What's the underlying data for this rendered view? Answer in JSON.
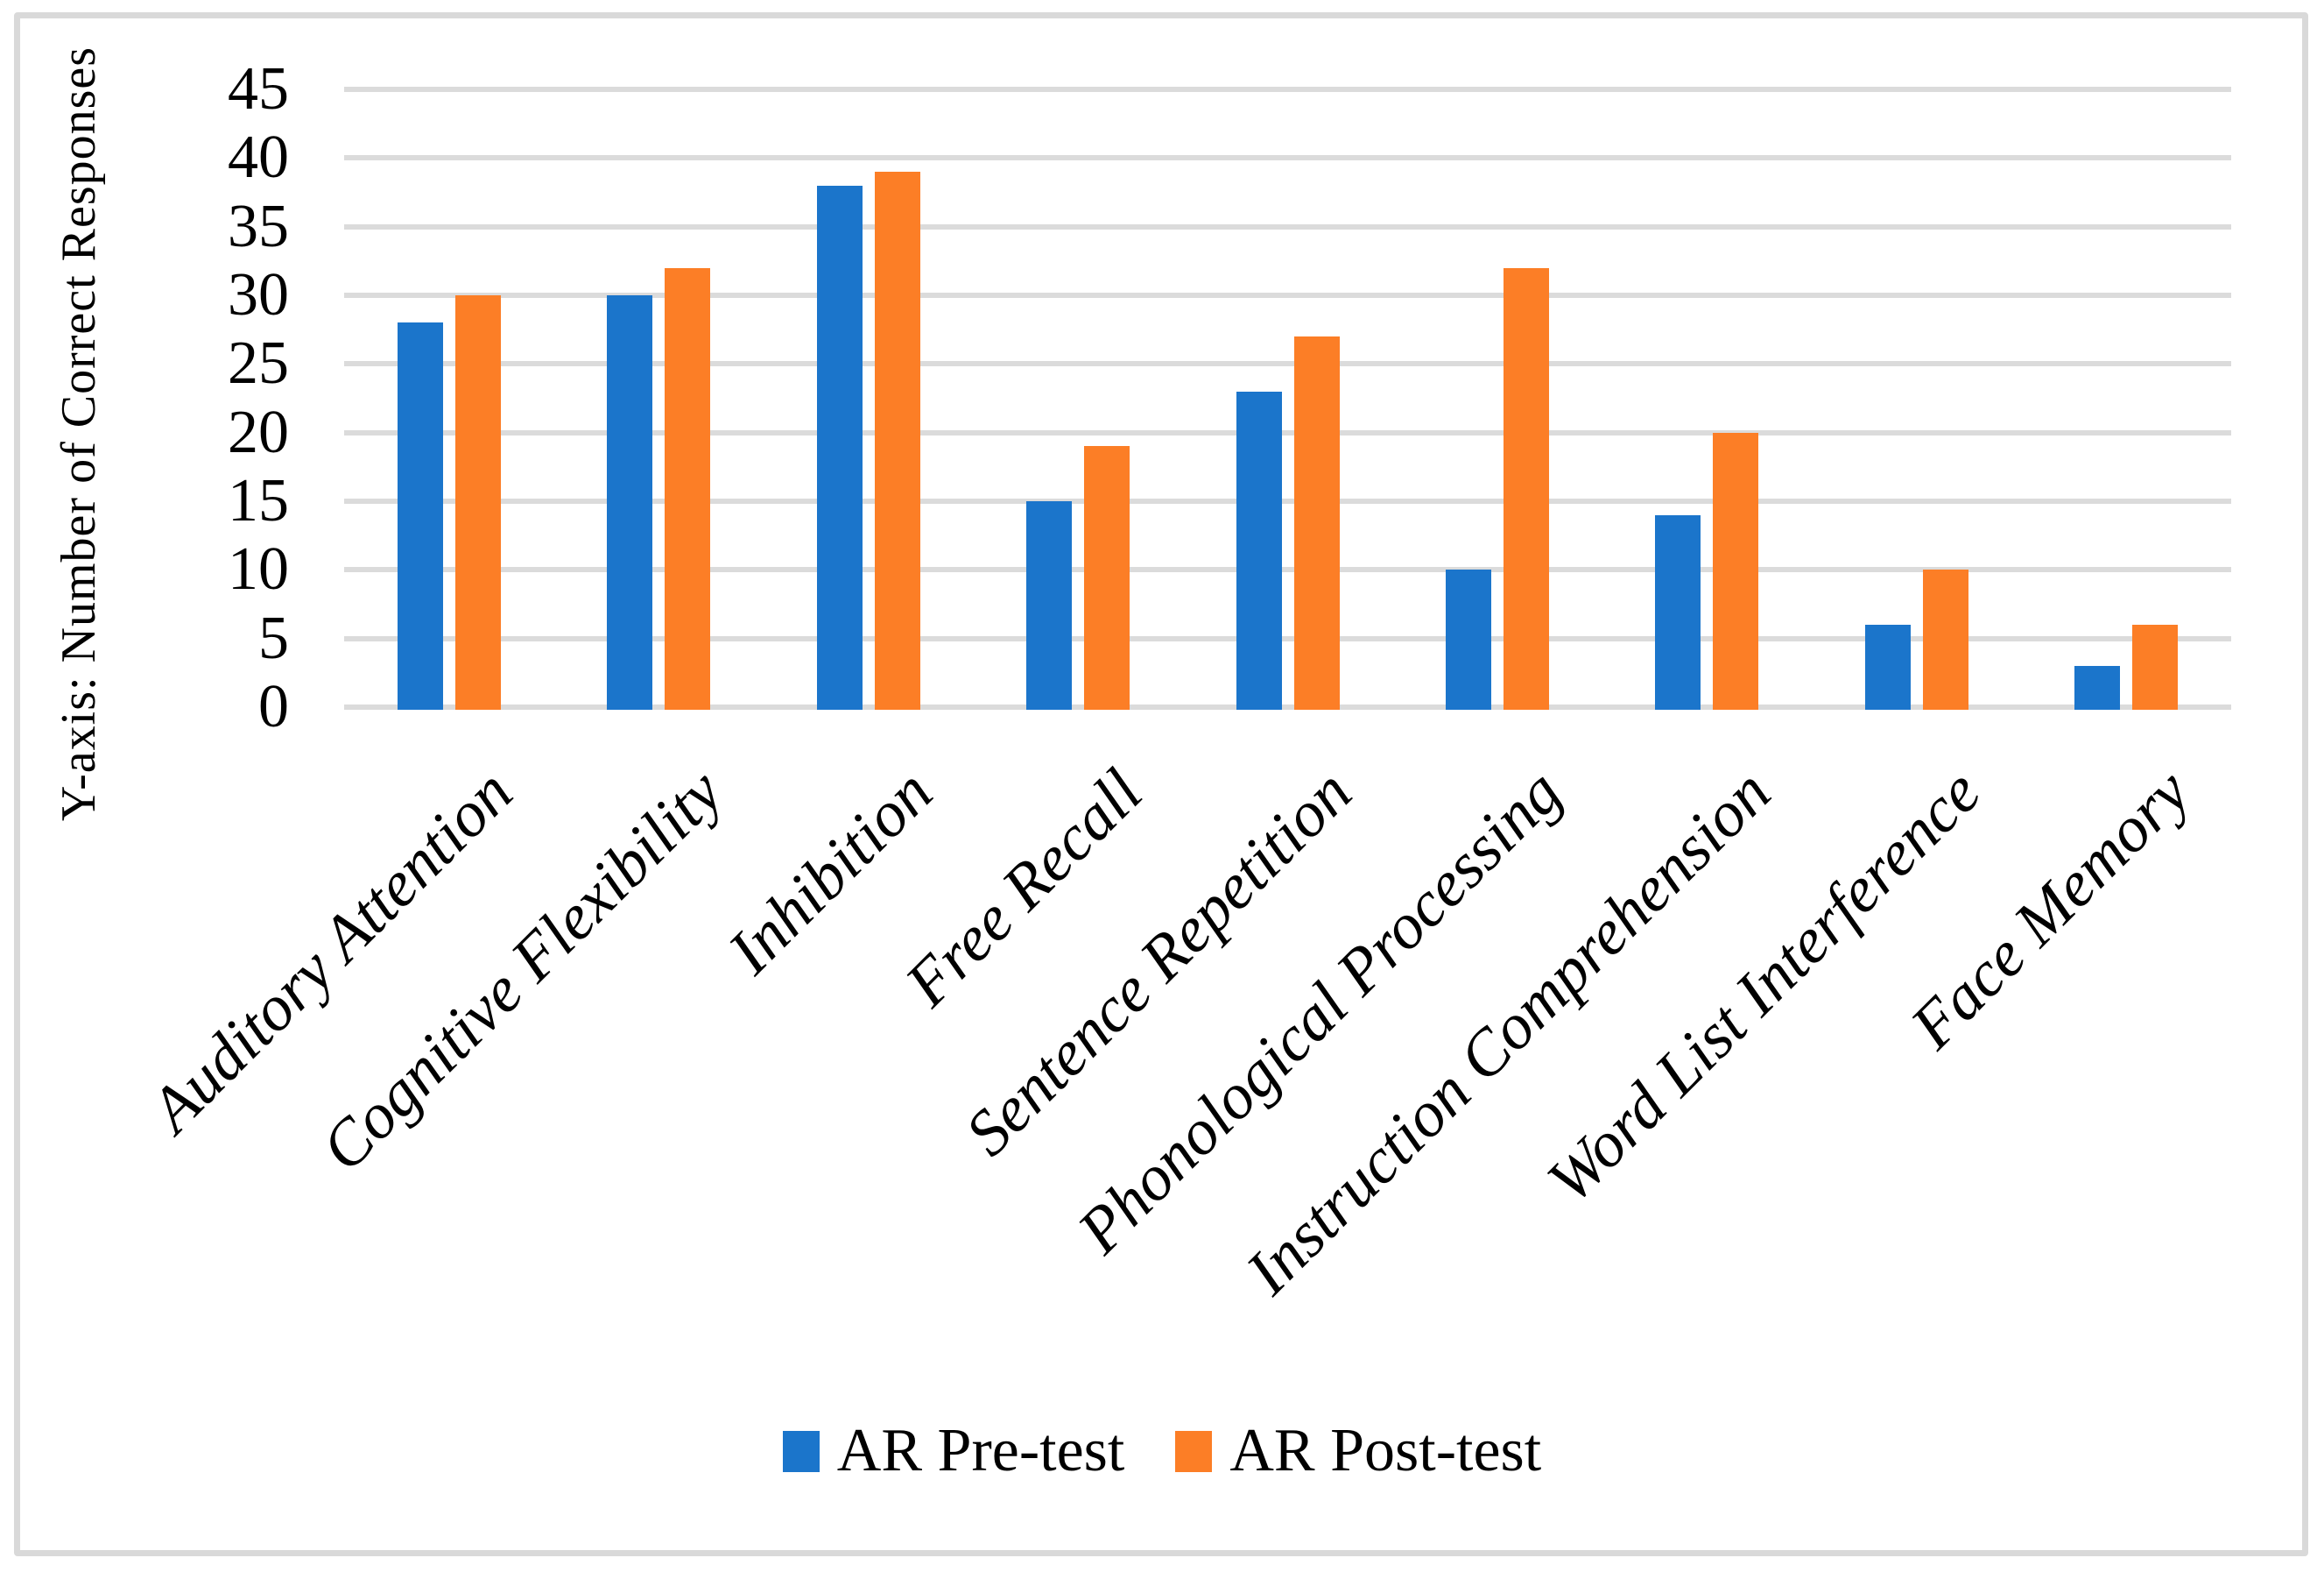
{
  "figure": {
    "y_axis_title": "Y-axis: Number of Correct Responses",
    "border_color": "#d9d9d9",
    "background_color": "#ffffff",
    "gridline_color": "#dbdbdb"
  },
  "chart_data": {
    "type": "bar",
    "title": "",
    "xlabel": "",
    "ylabel": "Y-axis: Number of Correct Responses",
    "ylim": [
      0,
      45
    ],
    "ytick_step": 5,
    "yticks": [
      0,
      5,
      10,
      15,
      20,
      25,
      30,
      35,
      40,
      45
    ],
    "grid": true,
    "legend_position": "bottom",
    "categories": [
      "Auditory Attention",
      "Cognitive Flexibility",
      "Inhibition",
      "Free Recall",
      "Sentence Repetition",
      "Phonological Processing",
      "Instruction Comprehension",
      "Word List Interference",
      "Face Memory"
    ],
    "series": [
      {
        "name": "AR Pre-test",
        "color": "#1b75cb",
        "values": [
          28,
          30,
          38,
          15,
          23,
          10,
          14,
          6,
          3
        ]
      },
      {
        "name": "AR Post-test",
        "color": "#fc7e26",
        "values": [
          30,
          32,
          39,
          19,
          27,
          32,
          20,
          10,
          6
        ]
      }
    ]
  }
}
